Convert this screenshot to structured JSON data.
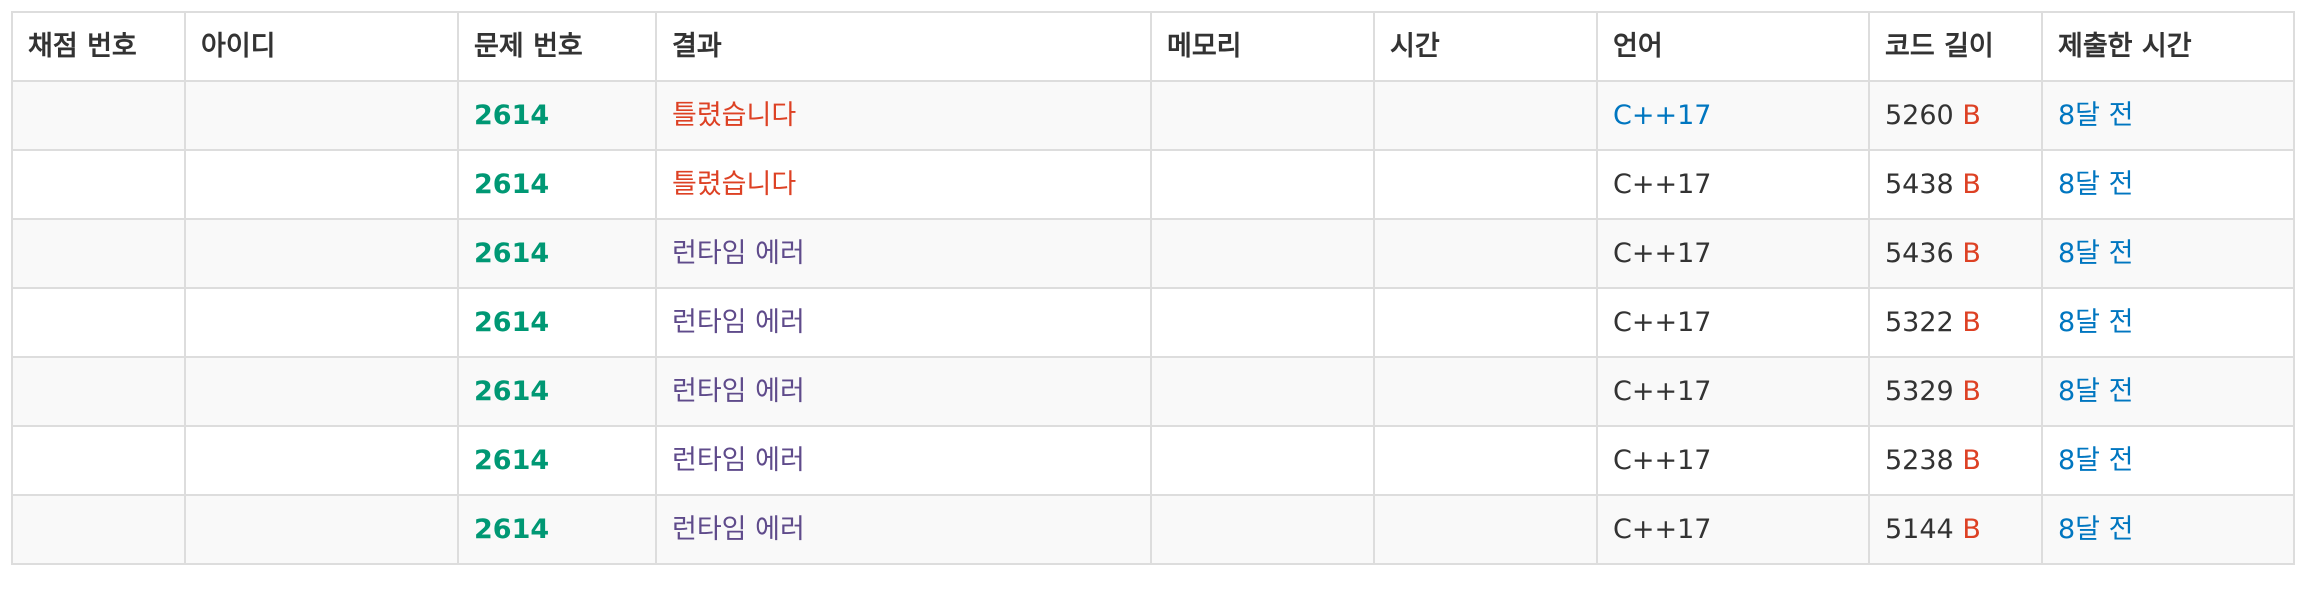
{
  "headers": {
    "submission_id": "채점 번호",
    "user_id": "아이디",
    "problem_id": "문제 번호",
    "result": "결과",
    "memory": "메모리",
    "time": "시간",
    "language": "언어",
    "code_length": "코드 길이",
    "submitted_at": "제출한 시간"
  },
  "rows": [
    {
      "problem": "2614",
      "result": "틀렸습니다",
      "result_type": "wrong",
      "language": "C++17",
      "language_linked": true,
      "length": "5260",
      "unit": "B",
      "time_ago": "8달 전"
    },
    {
      "problem": "2614",
      "result": "틀렸습니다",
      "result_type": "wrong",
      "language": "C++17",
      "language_linked": false,
      "length": "5438",
      "unit": "B",
      "time_ago": "8달 전"
    },
    {
      "problem": "2614",
      "result": "런타임 에러",
      "result_type": "runtime",
      "language": "C++17",
      "language_linked": false,
      "length": "5436",
      "unit": "B",
      "time_ago": "8달 전"
    },
    {
      "problem": "2614",
      "result": "런타임 에러",
      "result_type": "runtime",
      "language": "C++17",
      "language_linked": false,
      "length": "5322",
      "unit": "B",
      "time_ago": "8달 전"
    },
    {
      "problem": "2614",
      "result": "런타임 에러",
      "result_type": "runtime",
      "language": "C++17",
      "language_linked": false,
      "length": "5329",
      "unit": "B",
      "time_ago": "8달 전"
    },
    {
      "problem": "2614",
      "result": "런타임 에러",
      "result_type": "runtime",
      "language": "C++17",
      "language_linked": false,
      "length": "5238",
      "unit": "B",
      "time_ago": "8달 전"
    },
    {
      "problem": "2614",
      "result": "런타임 에러",
      "result_type": "runtime",
      "language": "C++17",
      "language_linked": false,
      "length": "5144",
      "unit": "B",
      "time_ago": "8달 전"
    }
  ],
  "colors": {
    "problem_link": "#009874",
    "result_wrong": "#dd4124",
    "result_runtime": "#5f4b8b",
    "link_blue": "#0076c0",
    "border": "#dddddd",
    "stripe": "#f9f9f9"
  }
}
